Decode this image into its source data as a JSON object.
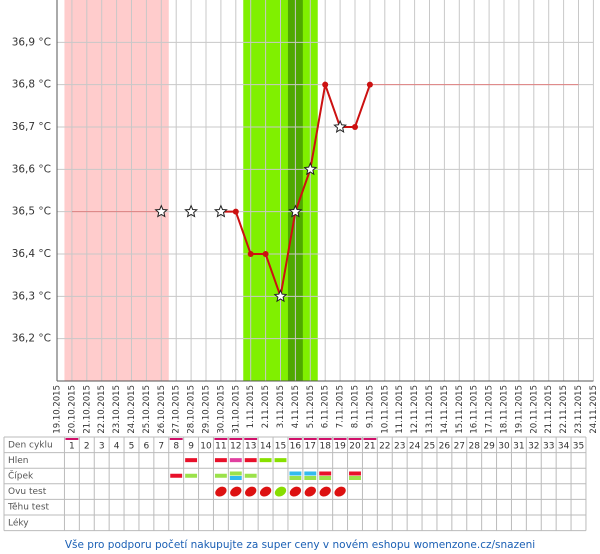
{
  "chart_data": {
    "type": "line",
    "categories": [
      "19.10.2015",
      "20.10.2015",
      "21.10.2015",
      "22.10.2015",
      "23.10.2015",
      "24.10.2015",
      "25.10.2015",
      "26.10.2015",
      "27.10.2015",
      "28.10.2015",
      "29.10.2015",
      "30.10.2015",
      "31.10.2015",
      "1.11.2015",
      "2.11.2015",
      "3.11.2015",
      "4.11.2015",
      "5.11.2015",
      "6.11.2015",
      "7.11.2015",
      "8.11.2015",
      "9.11.2015",
      "10.11.2015",
      "11.11.2015",
      "12.11.2015",
      "13.11.2015",
      "14.11.2015",
      "15.11.2015",
      "16.11.2015",
      "17.11.2015",
      "18.11.2015",
      "19.11.2015",
      "20.11.2015",
      "21.11.2015",
      "22.11.2015",
      "23.11.2015",
      "24.11.2015"
    ],
    "series": [
      {
        "color": "#cc1111",
        "width": 2,
        "values": [
          null,
          null,
          null,
          null,
          null,
          null,
          null,
          36.5,
          null,
          36.5,
          null,
          36.5,
          36.5,
          36.4,
          36.4,
          36.3,
          36.5,
          36.6,
          36.8,
          36.7,
          36.7,
          36.8,
          null,
          null,
          null,
          null,
          null,
          null,
          null,
          null,
          null,
          null,
          null,
          null,
          null,
          null,
          null
        ],
        "markers": [
          null,
          null,
          null,
          null,
          null,
          null,
          null,
          "star",
          null,
          "star",
          null,
          "star",
          "dot",
          "dot",
          "dot",
          "star",
          "star",
          "star",
          "dot",
          "star",
          "dot",
          "dot",
          null,
          null,
          null,
          null,
          null,
          null,
          null,
          null,
          null,
          null,
          null,
          null,
          null,
          null,
          null
        ]
      },
      {
        "color": "#e08080",
        "width": 1,
        "values": [
          null,
          36.5,
          36.5,
          36.5,
          36.5,
          36.5,
          36.5,
          36.5,
          null,
          null,
          null,
          null,
          null,
          null,
          null,
          null,
          null,
          null,
          null,
          null,
          null,
          36.8,
          36.8,
          36.8,
          36.8,
          36.8,
          36.8,
          36.8,
          36.8,
          36.8,
          36.8,
          36.8,
          36.8,
          36.8,
          36.8,
          36.8,
          null
        ]
      }
    ],
    "period": [
      "20.10.2015",
      "26.10.2015"
    ],
    "fertile": [
      "1.11.2015",
      "5.11.2015"
    ],
    "ovulation": "4.11.2015",
    "ylim": [
      36.1,
      37.0
    ],
    "yticks": [
      {
        "value": 36.2,
        "label": "36,2 °C"
      },
      {
        "value": 36.3,
        "label": "36,3 °C"
      },
      {
        "value": 36.4,
        "label": "36,4 °C"
      },
      {
        "value": 36.5,
        "label": "36,5 °C"
      },
      {
        "value": 36.6,
        "label": "36,6 °C"
      },
      {
        "value": 36.7,
        "label": "36,7 °C"
      },
      {
        "value": 36.8,
        "label": "36,8 °C"
      },
      {
        "value": 36.9,
        "label": "36,9 °C"
      }
    ],
    "grid": true
  },
  "table": {
    "cycle_label": "Den cyklu",
    "cycle_days": [
      1,
      2,
      3,
      4,
      5,
      6,
      7,
      8,
      9,
      10,
      11,
      12,
      13,
      14,
      15,
      16,
      17,
      18,
      19,
      20,
      21,
      22,
      23,
      24,
      25,
      26,
      27,
      28,
      29,
      30,
      31,
      32,
      33,
      34,
      35
    ],
    "highlight_days": [
      1,
      8,
      11,
      12,
      13,
      16,
      17,
      18,
      19,
      20,
      21
    ],
    "rows": [
      {
        "label": "Hlen",
        "cells": [
          null,
          null,
          null,
          null,
          null,
          null,
          null,
          null,
          [
            "#e8102a"
          ],
          null,
          [
            "#e8102a"
          ],
          [
            "#e040a0"
          ],
          [
            "#e8102a"
          ],
          [
            "#88e000"
          ],
          [
            "#88e000"
          ],
          null,
          null,
          null,
          null,
          null,
          null,
          null,
          null,
          null,
          null,
          null,
          null,
          null,
          null,
          null,
          null,
          null,
          null,
          null,
          null
        ]
      },
      {
        "label": "Čípek",
        "cells": [
          null,
          null,
          null,
          null,
          null,
          null,
          null,
          [
            "#e8102a"
          ],
          [
            "#9be24a"
          ],
          null,
          [
            "#9be24a"
          ],
          [
            "#9be24a",
            "#33bbee"
          ],
          [
            "#9be24a"
          ],
          null,
          null,
          [
            "#33bbee",
            "#9be24a"
          ],
          [
            "#33bbee",
            "#9be24a"
          ],
          [
            "#e8102a",
            "#9be24a"
          ],
          null,
          [
            "#e8102a",
            "#9be24a"
          ],
          null,
          null,
          null,
          null,
          null,
          null,
          null,
          null,
          null,
          null,
          null,
          null,
          null,
          null,
          null
        ]
      },
      {
        "label": "Ovu test",
        "icons": [
          null,
          null,
          null,
          null,
          null,
          null,
          null,
          null,
          null,
          null,
          "#dd1111",
          "#dd1111",
          "#dd1111",
          "#dd1111",
          "#88dd00",
          "#dd1111",
          "#dd1111",
          "#dd1111",
          "#dd1111",
          null,
          null,
          null,
          null,
          null,
          null,
          null,
          null,
          null,
          null,
          null,
          null,
          null,
          null,
          null,
          null
        ]
      },
      {
        "label": "Těhu test"
      },
      {
        "label": "Léky"
      }
    ]
  },
  "footer": "Vše pro podporu početí nakupujte za super ceny v novém eshopu womenzone.cz/snazeni"
}
